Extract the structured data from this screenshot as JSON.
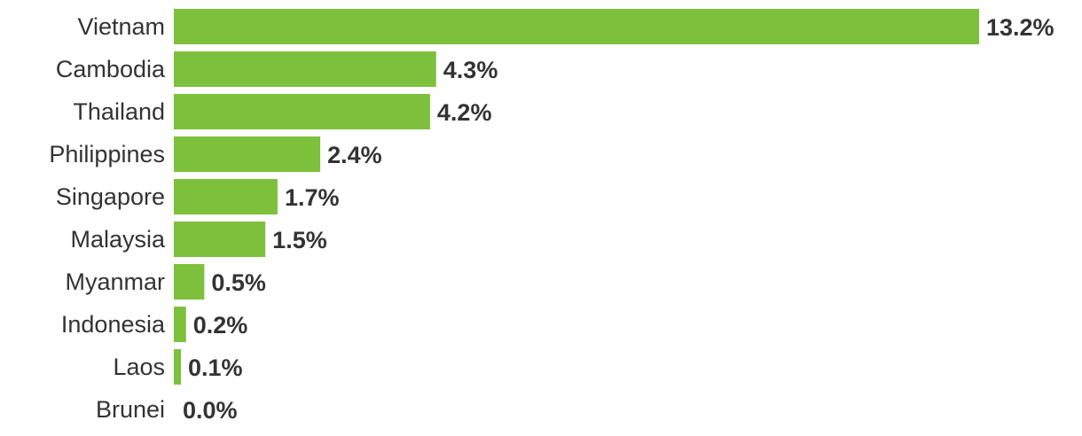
{
  "chart_data": {
    "type": "bar",
    "orientation": "horizontal",
    "categories": [
      "Vietnam",
      "Cambodia",
      "Thailand",
      "Philippines",
      "Singapore",
      "Malaysia",
      "Myanmar",
      "Indonesia",
      "Laos",
      "Brunei"
    ],
    "values": [
      13.2,
      4.3,
      4.2,
      2.4,
      1.7,
      1.5,
      0.5,
      0.2,
      0.1,
      0.0
    ],
    "data_labels": [
      "13.2%",
      "4.3%",
      "4.2%",
      "2.4%",
      "1.7%",
      "1.5%",
      "0.5%",
      "0.2%",
      "0.1%",
      "0.0%"
    ],
    "title": "",
    "xlabel": "",
    "ylabel": "",
    "xlim": [
      0,
      13.2
    ],
    "grid": false,
    "legend": "none",
    "bar_color": "#7dc03c",
    "text_color": "#333333"
  }
}
